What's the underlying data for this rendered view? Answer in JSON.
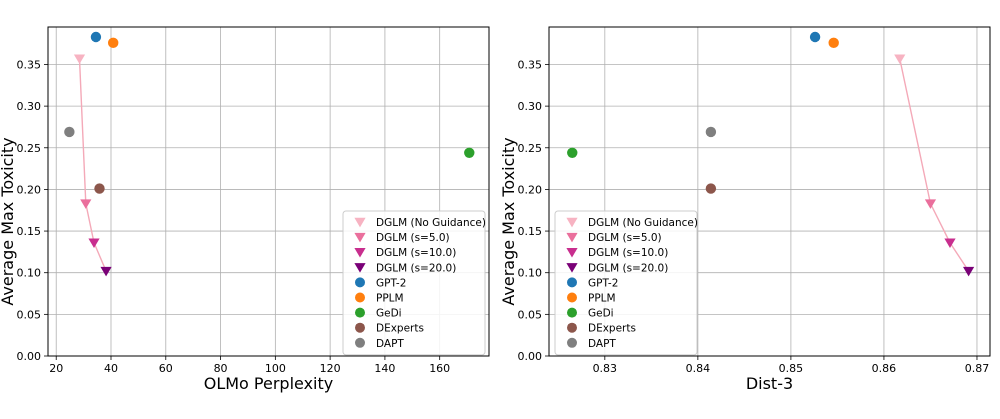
{
  "chart_data": [
    {
      "type": "scatter",
      "xlabel": "OLMo Perplexity",
      "ylabel": "Average Max Toxicity",
      "xlim": [
        17,
        178
      ],
      "ylim": [
        0.0,
        0.395
      ],
      "xticks": [
        20,
        40,
        60,
        80,
        100,
        120,
        140,
        160
      ],
      "xtick_labels": [
        "20",
        "40",
        "60",
        "80",
        "100",
        "120",
        "140",
        "160"
      ],
      "yticks": [
        0.0,
        0.05,
        0.1,
        0.15,
        0.2,
        0.25,
        0.3,
        0.35
      ],
      "ytick_labels": [
        "0.00",
        "0.05",
        "0.10",
        "0.15",
        "0.20",
        "0.25",
        "0.30",
        "0.35"
      ],
      "grid": true,
      "legend_position": "lower-right",
      "dglm_line": {
        "color": "#f4a9b8"
      },
      "series": [
        {
          "name": "DGLM (No Guidance)",
          "marker": "triangle-down",
          "color": "#f7b3c2",
          "x": 28.5,
          "y": 0.357
        },
        {
          "name": "DGLM (s=5.0)",
          "marker": "triangle-down",
          "color": "#ea6f9c",
          "x": 30.8,
          "y": 0.183
        },
        {
          "name": "DGLM (s=10.0)",
          "marker": "triangle-down",
          "color": "#c82e8e",
          "x": 33.8,
          "y": 0.136
        },
        {
          "name": "DGLM (s=20.0)",
          "marker": "triangle-down",
          "color": "#7a0177",
          "x": 38.2,
          "y": 0.102
        },
        {
          "name": "GPT-2",
          "marker": "circle",
          "color": "#1f77b4",
          "x": 34.5,
          "y": 0.383
        },
        {
          "name": "PPLM",
          "marker": "circle",
          "color": "#ff7f0e",
          "x": 40.8,
          "y": 0.376
        },
        {
          "name": "GeDi",
          "marker": "circle",
          "color": "#2ca02c",
          "x": 170.8,
          "y": 0.244
        },
        {
          "name": "DExperts",
          "marker": "circle",
          "color": "#8c564b",
          "x": 35.8,
          "y": 0.201
        },
        {
          "name": "DAPT",
          "marker": "circle",
          "color": "#7f7f7f",
          "x": 24.8,
          "y": 0.269
        }
      ]
    },
    {
      "type": "scatter",
      "xlabel": "Dist-3",
      "ylabel": "Average Max Toxicity",
      "xlim": [
        0.824,
        0.8714
      ],
      "ylim": [
        0.0,
        0.395
      ],
      "xticks": [
        0.83,
        0.84,
        0.85,
        0.86,
        0.87
      ],
      "xtick_labels": [
        "0.83",
        "0.84",
        "0.85",
        "0.86",
        "0.87"
      ],
      "yticks": [
        0.0,
        0.05,
        0.1,
        0.15,
        0.2,
        0.25,
        0.3,
        0.35
      ],
      "ytick_labels": [
        "0.00",
        "0.05",
        "0.10",
        "0.15",
        "0.20",
        "0.25",
        "0.30",
        "0.35"
      ],
      "grid": true,
      "legend_position": "lower-left",
      "dglm_line": {
        "color": "#f4a9b8"
      },
      "series": [
        {
          "name": "DGLM (No Guidance)",
          "marker": "triangle-down",
          "color": "#f7b3c2",
          "x": 0.8617,
          "y": 0.357
        },
        {
          "name": "DGLM (s=5.0)",
          "marker": "triangle-down",
          "color": "#ea6f9c",
          "x": 0.865,
          "y": 0.183
        },
        {
          "name": "DGLM (s=10.0)",
          "marker": "triangle-down",
          "color": "#c82e8e",
          "x": 0.8671,
          "y": 0.136
        },
        {
          "name": "DGLM (s=20.0)",
          "marker": "triangle-down",
          "color": "#7a0177",
          "x": 0.8691,
          "y": 0.102
        },
        {
          "name": "GPT-2",
          "marker": "circle",
          "color": "#1f77b4",
          "x": 0.8526,
          "y": 0.383
        },
        {
          "name": "PPLM",
          "marker": "circle",
          "color": "#ff7f0e",
          "x": 0.8546,
          "y": 0.376
        },
        {
          "name": "GeDi",
          "marker": "circle",
          "color": "#2ca02c",
          "x": 0.8265,
          "y": 0.244
        },
        {
          "name": "DExperts",
          "marker": "circle",
          "color": "#8c564b",
          "x": 0.8414,
          "y": 0.201
        },
        {
          "name": "DAPT",
          "marker": "circle",
          "color": "#7f7f7f",
          "x": 0.8414,
          "y": 0.269
        }
      ]
    }
  ]
}
